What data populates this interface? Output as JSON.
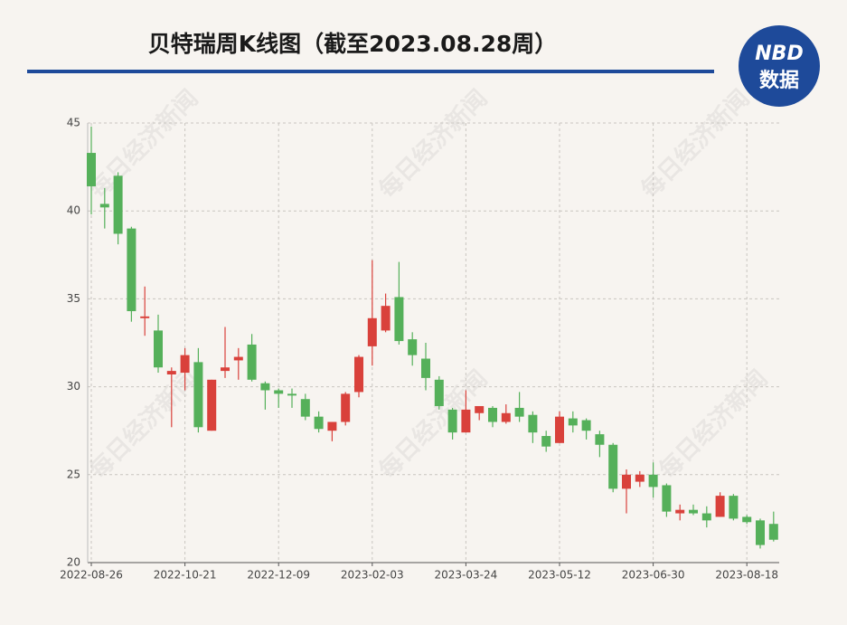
{
  "chart_data": {
    "type": "candlestick",
    "title": "贝特瑞周K线图（截至2023.08.28周）",
    "logo": {
      "top": "NBD",
      "bottom": "数据"
    },
    "watermark": "每日经济新闻",
    "categories": [
      "2022-08-26",
      null,
      null,
      null,
      null,
      null,
      null,
      "2022-10-21",
      null,
      null,
      null,
      null,
      null,
      null,
      "2022-12-09",
      null,
      null,
      null,
      null,
      null,
      null,
      "2023-02-03",
      null,
      null,
      null,
      null,
      null,
      null,
      "2023-03-24",
      null,
      null,
      null,
      null,
      null,
      null,
      "2023-05-12",
      null,
      null,
      null,
      null,
      null,
      null,
      "2023-06-30",
      null,
      null,
      null,
      null,
      null,
      null,
      "2023-08-18",
      null,
      null
    ],
    "open": [
      43.3,
      40.4,
      42.0,
      39.0,
      33.9,
      33.2,
      30.7,
      30.8,
      31.4,
      27.5,
      30.9,
      31.5,
      32.4,
      30.2,
      29.8,
      29.6,
      29.3,
      28.3,
      27.5,
      28.0,
      29.7,
      32.3,
      33.2,
      35.1,
      32.7,
      31.6,
      30.4,
      28.7,
      27.4,
      28.5,
      28.8,
      28.0,
      28.8,
      28.4,
      27.2,
      26.8,
      28.2,
      28.1,
      27.3,
      26.7,
      24.2,
      24.6,
      25.0,
      24.4,
      22.8,
      23.0,
      22.8,
      22.6,
      23.8,
      22.6,
      22.4,
      22.2
    ],
    "high": [
      44.8,
      41.3,
      42.2,
      39.1,
      35.7,
      34.1,
      31.1,
      32.2,
      32.2,
      30.4,
      33.4,
      32.2,
      33.0,
      30.3,
      29.9,
      29.9,
      29.6,
      28.6,
      28.0,
      29.7,
      31.8,
      37.2,
      35.3,
      37.1,
      33.1,
      32.5,
      30.6,
      28.8,
      29.8,
      28.9,
      28.9,
      29.0,
      29.7,
      28.6,
      27.5,
      28.6,
      28.6,
      28.2,
      27.5,
      26.8,
      25.3,
      25.2,
      25.7,
      24.5,
      23.3,
      23.3,
      23.2,
      24.0,
      23.9,
      22.7,
      22.5,
      22.9
    ],
    "low": [
      39.8,
      39.0,
      38.1,
      33.7,
      32.9,
      30.8,
      27.7,
      29.8,
      27.4,
      27.5,
      30.5,
      30.4,
      30.3,
      28.7,
      28.8,
      28.8,
      28.1,
      27.4,
      26.9,
      27.8,
      29.4,
      31.2,
      33.1,
      32.4,
      31.2,
      29.8,
      28.7,
      27.0,
      27.4,
      28.1,
      27.7,
      27.9,
      28.0,
      26.8,
      26.3,
      26.8,
      27.4,
      27.0,
      26.0,
      24.0,
      22.8,
      24.3,
      23.7,
      22.6,
      22.4,
      22.7,
      22.0,
      22.6,
      22.4,
      22.2,
      20.8,
      21.2
    ],
    "close": [
      41.4,
      40.2,
      38.7,
      34.3,
      34.0,
      31.1,
      30.9,
      31.8,
      27.7,
      30.4,
      31.1,
      31.7,
      30.4,
      29.8,
      29.6,
      29.5,
      28.3,
      27.6,
      28.0,
      29.6,
      31.7,
      33.9,
      34.6,
      32.6,
      31.8,
      30.5,
      28.9,
      27.4,
      28.7,
      28.9,
      28.0,
      28.5,
      28.3,
      27.4,
      26.6,
      28.3,
      27.8,
      27.5,
      26.7,
      24.2,
      25.0,
      25.0,
      24.3,
      22.9,
      23.0,
      22.8,
      22.4,
      23.8,
      22.5,
      22.3,
      21.0,
      21.3
    ],
    "up_color": "#d9413b",
    "down_color": "#55b05a",
    "ylim": [
      20,
      45
    ],
    "yticks": [
      20,
      25,
      30,
      35,
      40,
      45
    ],
    "grid": true
  }
}
